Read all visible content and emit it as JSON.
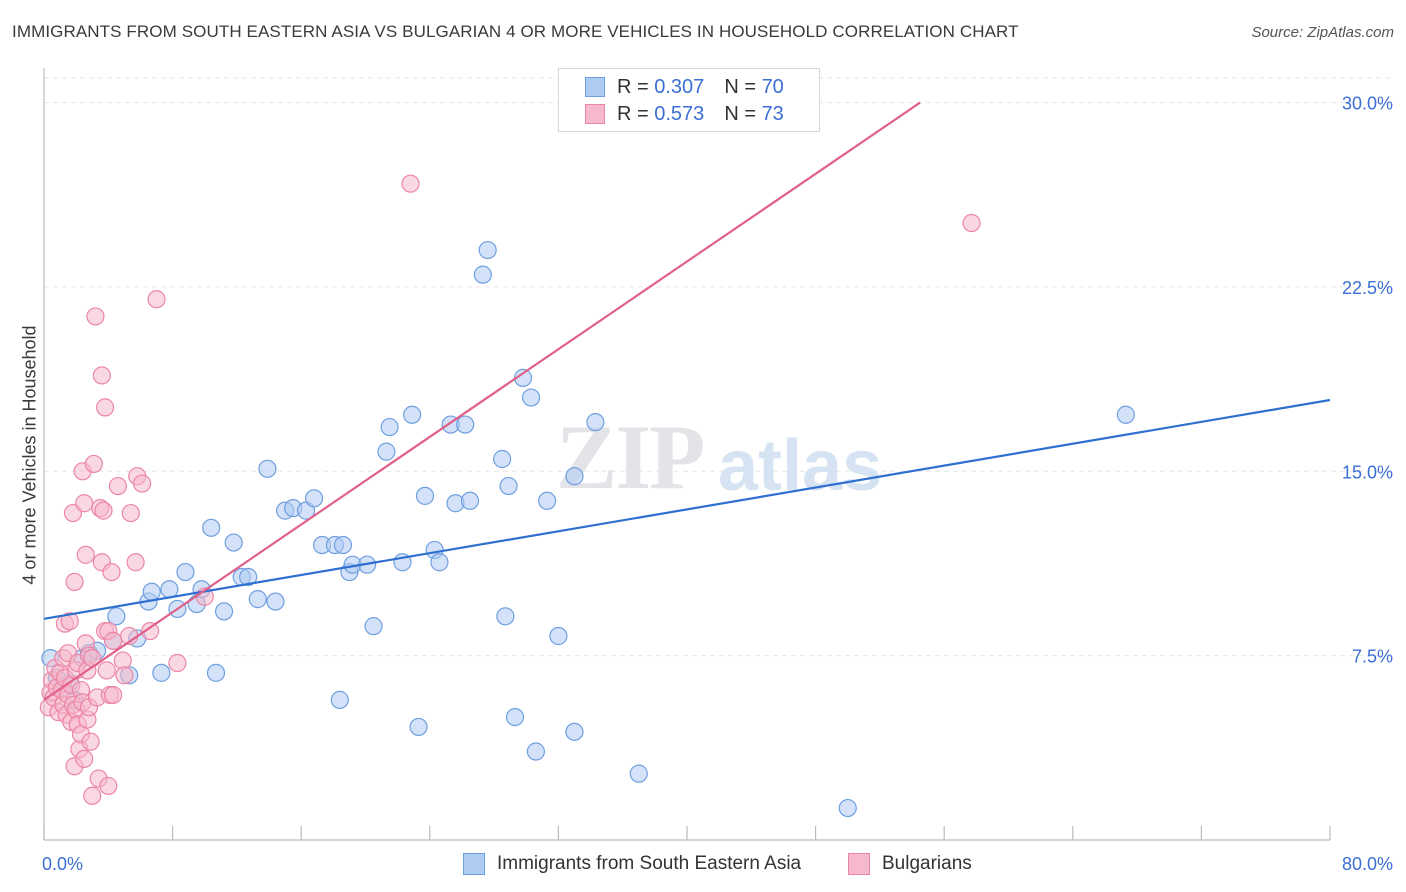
{
  "header": {
    "title": "IMMIGRANTS FROM SOUTH EASTERN ASIA VS BULGARIAN 4 OR MORE VEHICLES IN HOUSEHOLD CORRELATION CHART",
    "source": "Source: ZipAtlas.com"
  },
  "watermark": {
    "zip": "ZIP",
    "atlas": "atlas"
  },
  "legend": {
    "r_label": "R =",
    "n_label": "N =",
    "series": [
      {
        "name": "Immigrants from South Eastern Asia",
        "r": "0.307",
        "n": "70"
      },
      {
        "name": "Bulgarians",
        "r": "0.573",
        "n": "73"
      }
    ]
  },
  "colors": {
    "blue_fill": "#aecbf2",
    "blue_stroke": "#6f9fe0",
    "blue_line": "#2f6fd0",
    "pink_fill": "#f6b8cb",
    "pink_stroke": "#ec86a6",
    "pink_line": "#e0608a",
    "accent_text": "#3b6fd4"
  },
  "chart_data": {
    "type": "scatter",
    "title": "IMMIGRANTS FROM SOUTH EASTERN ASIA VS BULGARIAN 4 OR MORE VEHICLES IN HOUSEHOLD CORRELATION CHART",
    "xlabel": "",
    "ylabel": "4 or more Vehicles in Household",
    "xlim": [
      0,
      80
    ],
    "ylim": [
      0,
      31
    ],
    "x_tick_labels": {
      "min": "0.0%",
      "max": "80.0%"
    },
    "y_ticks": [
      {
        "value": 7.5,
        "label": "7.5%"
      },
      {
        "value": 15.0,
        "label": "15.0%"
      },
      {
        "value": 22.5,
        "label": "22.5%"
      },
      {
        "value": 30.0,
        "label": "30.0%"
      }
    ],
    "grid": true,
    "series": [
      {
        "name": "Immigrants from South Eastern Asia",
        "color": "blue",
        "trend": {
          "x0": 0,
          "y0": 9.0,
          "x1": 80,
          "y1": 17.9
        },
        "points": [
          [
            0.4,
            7.4
          ],
          [
            0.8,
            6.6
          ],
          [
            1.2,
            6.2
          ],
          [
            1.6,
            6.4
          ],
          [
            1.9,
            5.7
          ],
          [
            2.4,
            7.4
          ],
          [
            2.8,
            7.6
          ],
          [
            3.3,
            7.7
          ],
          [
            4.3,
            8.1
          ],
          [
            4.5,
            9.1
          ],
          [
            5.3,
            6.7
          ],
          [
            5.8,
            8.2
          ],
          [
            6.5,
            9.7
          ],
          [
            6.7,
            10.1
          ],
          [
            7.3,
            6.8
          ],
          [
            7.8,
            10.2
          ],
          [
            8.3,
            9.4
          ],
          [
            8.8,
            10.9
          ],
          [
            9.5,
            9.6
          ],
          [
            9.8,
            10.2
          ],
          [
            10.4,
            12.7
          ],
          [
            10.7,
            6.8
          ],
          [
            11.2,
            9.3
          ],
          [
            11.8,
            12.1
          ],
          [
            12.3,
            10.7
          ],
          [
            12.7,
            10.7
          ],
          [
            13.3,
            9.8
          ],
          [
            13.9,
            15.1
          ],
          [
            14.4,
            9.7
          ],
          [
            15.0,
            13.4
          ],
          [
            15.5,
            13.5
          ],
          [
            16.3,
            13.4
          ],
          [
            16.8,
            13.9
          ],
          [
            17.3,
            12.0
          ],
          [
            18.1,
            12.0
          ],
          [
            18.4,
            5.7
          ],
          [
            18.6,
            12.0
          ],
          [
            19.0,
            10.9
          ],
          [
            19.2,
            11.2
          ],
          [
            20.1,
            11.2
          ],
          [
            20.5,
            8.7
          ],
          [
            21.3,
            15.8
          ],
          [
            21.5,
            16.8
          ],
          [
            22.3,
            11.3
          ],
          [
            22.9,
            17.3
          ],
          [
            23.3,
            4.6
          ],
          [
            23.7,
            14.0
          ],
          [
            24.3,
            11.8
          ],
          [
            24.6,
            11.3
          ],
          [
            25.3,
            16.9
          ],
          [
            25.6,
            13.7
          ],
          [
            26.2,
            16.9
          ],
          [
            26.5,
            13.8
          ],
          [
            27.3,
            23.0
          ],
          [
            27.6,
            24.0
          ],
          [
            28.5,
            15.5
          ],
          [
            28.9,
            14.4
          ],
          [
            29.3,
            5.0
          ],
          [
            29.8,
            18.8
          ],
          [
            30.3,
            18.0
          ],
          [
            30.6,
            3.6
          ],
          [
            31.3,
            13.8
          ],
          [
            32.0,
            8.3
          ],
          [
            33.0,
            4.4
          ],
          [
            33.0,
            14.8
          ],
          [
            34.3,
            17.0
          ],
          [
            37.0,
            2.7
          ],
          [
            50.0,
            1.3
          ],
          [
            67.3,
            17.3
          ],
          [
            28.7,
            9.1
          ]
        ]
      },
      {
        "name": "Bulgarians",
        "color": "pink",
        "trend": {
          "x0": 0,
          "y0": 5.7,
          "x1": 54.5,
          "y1": 30.0
        },
        "points": [
          [
            0.3,
            5.4
          ],
          [
            0.4,
            6.0
          ],
          [
            0.5,
            6.5
          ],
          [
            0.6,
            5.8
          ],
          [
            0.7,
            7.0
          ],
          [
            0.8,
            6.2
          ],
          [
            0.9,
            5.2
          ],
          [
            1.0,
            6.8
          ],
          [
            1.1,
            6.1
          ],
          [
            1.2,
            7.4
          ],
          [
            1.2,
            5.5
          ],
          [
            1.3,
            6.6
          ],
          [
            1.3,
            8.8
          ],
          [
            1.4,
            5.1
          ],
          [
            1.5,
            7.6
          ],
          [
            1.5,
            5.9
          ],
          [
            1.6,
            8.9
          ],
          [
            1.7,
            6.3
          ],
          [
            1.7,
            4.8
          ],
          [
            1.8,
            5.5
          ],
          [
            1.8,
            13.3
          ],
          [
            1.9,
            10.5
          ],
          [
            1.9,
            3.0
          ],
          [
            2.0,
            6.9
          ],
          [
            2.0,
            5.3
          ],
          [
            2.1,
            4.7
          ],
          [
            2.1,
            7.2
          ],
          [
            2.2,
            3.7
          ],
          [
            2.3,
            4.3
          ],
          [
            2.3,
            6.1
          ],
          [
            2.4,
            5.6
          ],
          [
            2.4,
            15.0
          ],
          [
            2.5,
            13.7
          ],
          [
            2.5,
            3.3
          ],
          [
            2.6,
            11.6
          ],
          [
            2.6,
            8.0
          ],
          [
            2.7,
            6.9
          ],
          [
            2.7,
            4.9
          ],
          [
            2.8,
            7.5
          ],
          [
            2.8,
            5.4
          ],
          [
            2.9,
            4.0
          ],
          [
            3.0,
            1.8
          ],
          [
            3.0,
            7.4
          ],
          [
            3.1,
            15.3
          ],
          [
            3.2,
            21.3
          ],
          [
            3.3,
            5.8
          ],
          [
            3.4,
            2.5
          ],
          [
            3.5,
            13.5
          ],
          [
            3.6,
            11.3
          ],
          [
            3.6,
            18.9
          ],
          [
            3.7,
            13.4
          ],
          [
            3.8,
            8.5
          ],
          [
            3.8,
            17.6
          ],
          [
            3.9,
            6.9
          ],
          [
            4.0,
            2.2
          ],
          [
            4.0,
            8.5
          ],
          [
            4.1,
            5.9
          ],
          [
            4.2,
            10.9
          ],
          [
            4.3,
            8.1
          ],
          [
            4.3,
            5.9
          ],
          [
            4.6,
            14.4
          ],
          [
            4.9,
            7.3
          ],
          [
            5.0,
            6.7
          ],
          [
            5.3,
            8.3
          ],
          [
            5.4,
            13.3
          ],
          [
            5.7,
            11.3
          ],
          [
            5.8,
            14.8
          ],
          [
            6.1,
            14.5
          ],
          [
            6.6,
            8.5
          ],
          [
            7.0,
            22.0
          ],
          [
            8.3,
            7.2
          ],
          [
            10.0,
            9.9
          ],
          [
            22.8,
            26.7
          ]
        ],
        "extra_points": [
          [
            57.7,
            25.1
          ]
        ]
      }
    ]
  }
}
